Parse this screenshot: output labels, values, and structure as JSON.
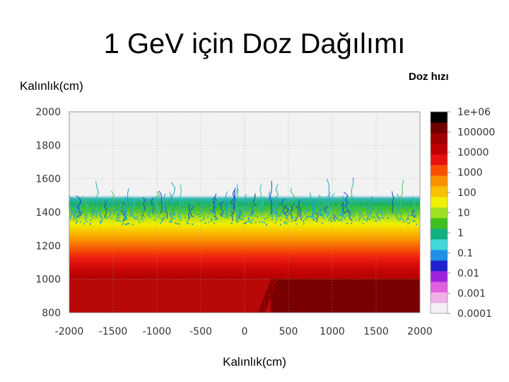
{
  "slide": {
    "title": "1 GeV için Doz Dağılımı",
    "y_axis_label": "Kalınlık(cm)",
    "x_axis_label": "Kalınlık(cm)",
    "colorbar_label": "Doz hızı"
  },
  "chart_data": {
    "type": "heatmap",
    "title": "1 GeV için Doz Dağılımı",
    "xlabel": "Kalınlık(cm)",
    "ylabel": "Kalınlık(cm)",
    "xlim": [
      -2000,
      2000
    ],
    "ylim": [
      800,
      2000
    ],
    "x_ticks": [
      "-2000",
      "-1500",
      "-1000",
      "-500",
      "0",
      "500",
      "1000",
      "1500",
      "2000"
    ],
    "y_ticks": [
      "2000",
      "1800",
      "1600",
      "1400",
      "1200",
      "1000",
      "800"
    ],
    "grid": true,
    "colorbar": {
      "label": "Doz hızı",
      "scale": "log",
      "range": [
        0.0001,
        1000000
      ],
      "tick_labels": [
        "1e+06",
        "100000",
        "10000",
        "1000",
        "100",
        "10",
        "1",
        "0.1",
        "0.01",
        "0.001",
        "0.0001"
      ],
      "colors": [
        "#f4eef4",
        "#f0b0e8",
        "#e060e0",
        "#a020e0",
        "#2020d0",
        "#1e90e6",
        "#40d8d8",
        "#10b080",
        "#40c020",
        "#a0e020",
        "#f0f000",
        "#f8c000",
        "#f89000",
        "#f85000",
        "#e81010",
        "#c00000",
        "#a00000",
        "#700000",
        "#000000"
      ]
    },
    "dose_profile": [
      {
        "y": 800,
        "dose": 300000,
        "note": "x<300"
      },
      {
        "y": 800,
        "dose": 1000000,
        "note": "x>300"
      },
      {
        "y": 1000,
        "dose": 300000
      },
      {
        "y": 1100,
        "dose": 20000
      },
      {
        "y": 1200,
        "dose": 1000
      },
      {
        "y": 1300,
        "dose": 60
      },
      {
        "y": 1400,
        "dose": 3
      },
      {
        "y": 1450,
        "dose": 1
      },
      {
        "y": 1500,
        "dose": 0.1
      }
    ]
  }
}
